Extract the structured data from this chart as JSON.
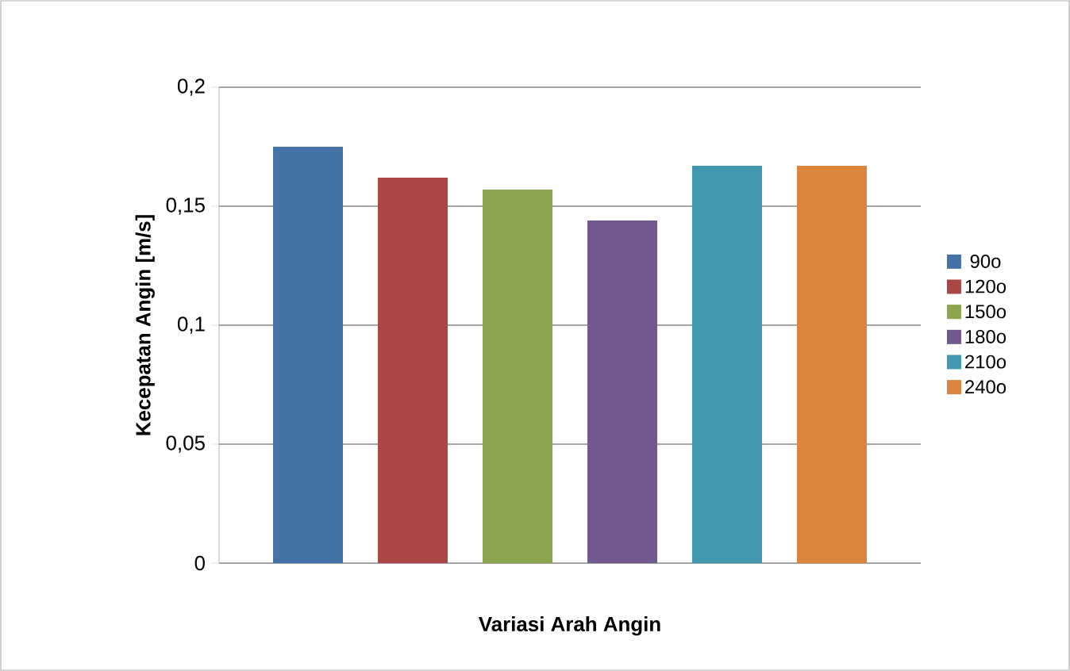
{
  "chart_data": {
    "type": "bar",
    "xlabel": "Variasi Arah Angin",
    "ylabel": "Kecepatan Angin [m/s]",
    "categories": [
      null
    ],
    "series": [
      {
        "name": "90o",
        "color": "#4572a7",
        "values": [
          0.175
        ]
      },
      {
        "name": "120o",
        "color": "#aa4643",
        "values": [
          0.162
        ]
      },
      {
        "name": "150o",
        "color": "#89a54e",
        "values": [
          0.157
        ]
      },
      {
        "name": "180o",
        "color": "#71588f",
        "values": [
          0.144
        ]
      },
      {
        "name": "210o",
        "color": "#4198af",
        "values": [
          0.167
        ]
      },
      {
        "name": "240o",
        "color": "#db843d",
        "values": [
          0.167
        ]
      }
    ],
    "ylim": [
      0,
      0.2
    ],
    "yticks": [
      {
        "value": 0,
        "label": "0"
      },
      {
        "value": 0.05,
        "label": "0,05"
      },
      {
        "value": 0.1,
        "label": "0,1"
      },
      {
        "value": 0.15,
        "label": "0,15"
      },
      {
        "value": 0.2,
        "label": "0,2"
      }
    ],
    "grid": "y",
    "legend": "right"
  }
}
